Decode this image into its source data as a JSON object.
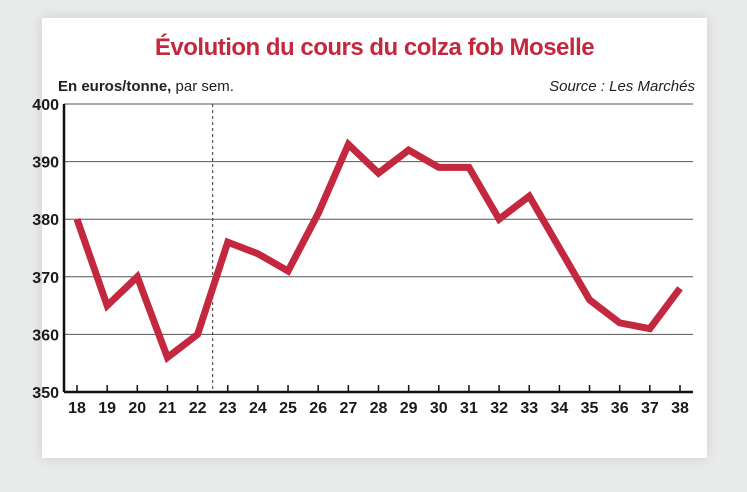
{
  "chart_data": {
    "type": "line",
    "title": "Évolution du cours du colza fob Moselle",
    "unit_label_bold": "En euros/tonne,",
    "unit_label_rest": " par sem.",
    "source": "Source : Les Marchés",
    "x": [
      "18",
      "19",
      "20",
      "21",
      "22",
      "23",
      "24",
      "25",
      "26",
      "27",
      "28",
      "29",
      "30",
      "31",
      "32",
      "33",
      "34",
      "35",
      "36",
      "37",
      "38"
    ],
    "series": [
      {
        "values": [
          380,
          365,
          370,
          356,
          360,
          376,
          374,
          371,
          381,
          393,
          388,
          392,
          389,
          389,
          380,
          384,
          375,
          366,
          362,
          361,
          368
        ]
      }
    ],
    "ylim": [
      350,
      400
    ],
    "yticks": [
      "400",
      "390",
      "380",
      "370",
      "360",
      "350"
    ],
    "grid": true,
    "vertical_marker_after": "22",
    "line_color": "#c4283e"
  }
}
